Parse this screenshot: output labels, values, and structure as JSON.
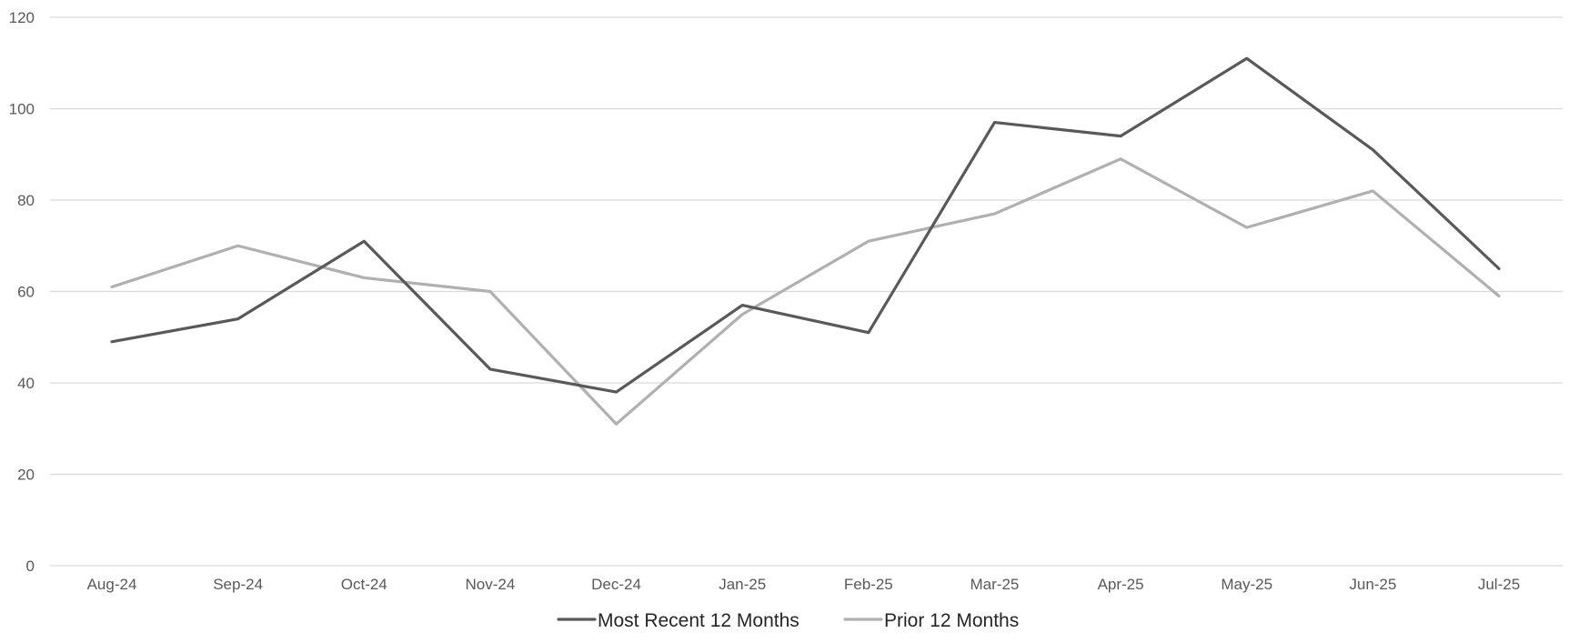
{
  "chart_data": {
    "type": "line",
    "title": "",
    "xlabel": "",
    "ylabel": "",
    "categories": [
      "Aug-24",
      "Sep-24",
      "Oct-24",
      "Nov-24",
      "Dec-24",
      "Jan-25",
      "Feb-25",
      "Mar-25",
      "Apr-25",
      "May-25",
      "Jun-25",
      "Jul-25"
    ],
    "ylim": [
      0,
      120
    ],
    "yticks": [
      0,
      20,
      40,
      60,
      80,
      100,
      120
    ],
    "grid": true,
    "legend_position": "bottom-center",
    "series": [
      {
        "name": "Most Recent 12 Months",
        "color": "#595959",
        "values": [
          49,
          54,
          71,
          43,
          38,
          57,
          51,
          97,
          94,
          111,
          91,
          65
        ]
      },
      {
        "name": "Prior 12 Months",
        "color": "#b0b0b0",
        "values": [
          61,
          70,
          63,
          60,
          31,
          55,
          71,
          77,
          89,
          74,
          82,
          59
        ]
      }
    ]
  }
}
